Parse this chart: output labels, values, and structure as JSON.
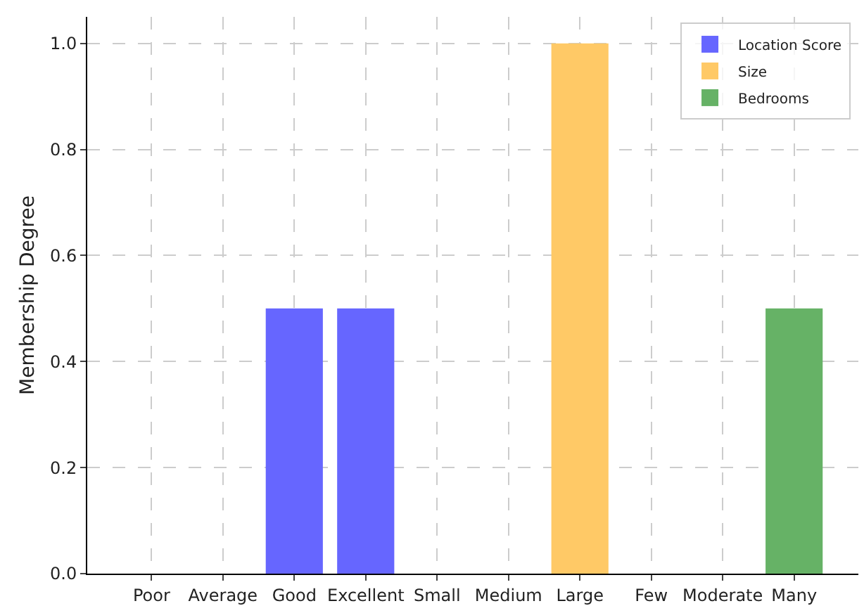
{
  "chart_data": {
    "type": "bar",
    "ylabel": "Membership Degree",
    "categories": [
      "Poor",
      "Average",
      "Good",
      "Excellent",
      "Small",
      "Medium",
      "Large",
      "Few",
      "Moderate",
      "Many"
    ],
    "series": [
      {
        "name": "Location Score",
        "color": "#6666ff",
        "values": [
          0,
          0,
          0.5,
          0.5,
          null,
          null,
          null,
          null,
          null,
          null
        ]
      },
      {
        "name": "Size",
        "color": "#ffc966",
        "values": [
          null,
          null,
          null,
          null,
          0,
          0,
          1.0,
          null,
          null,
          null
        ]
      },
      {
        "name": "Bedrooms",
        "color": "#66b266",
        "values": [
          null,
          null,
          null,
          null,
          null,
          null,
          null,
          0,
          0,
          0.5
        ]
      }
    ],
    "ylim": [
      0,
      1.05
    ],
    "yticks": [
      {
        "value": 0,
        "label": "0.0"
      },
      {
        "value": 0.2,
        "label": "0.2"
      },
      {
        "value": 0.4,
        "label": "0.4"
      },
      {
        "value": 0.6,
        "label": "0.6"
      },
      {
        "value": 0.8,
        "label": "0.8"
      },
      {
        "value": 1.0,
        "label": "1.0"
      }
    ],
    "grid": true,
    "legend": "top right"
  }
}
